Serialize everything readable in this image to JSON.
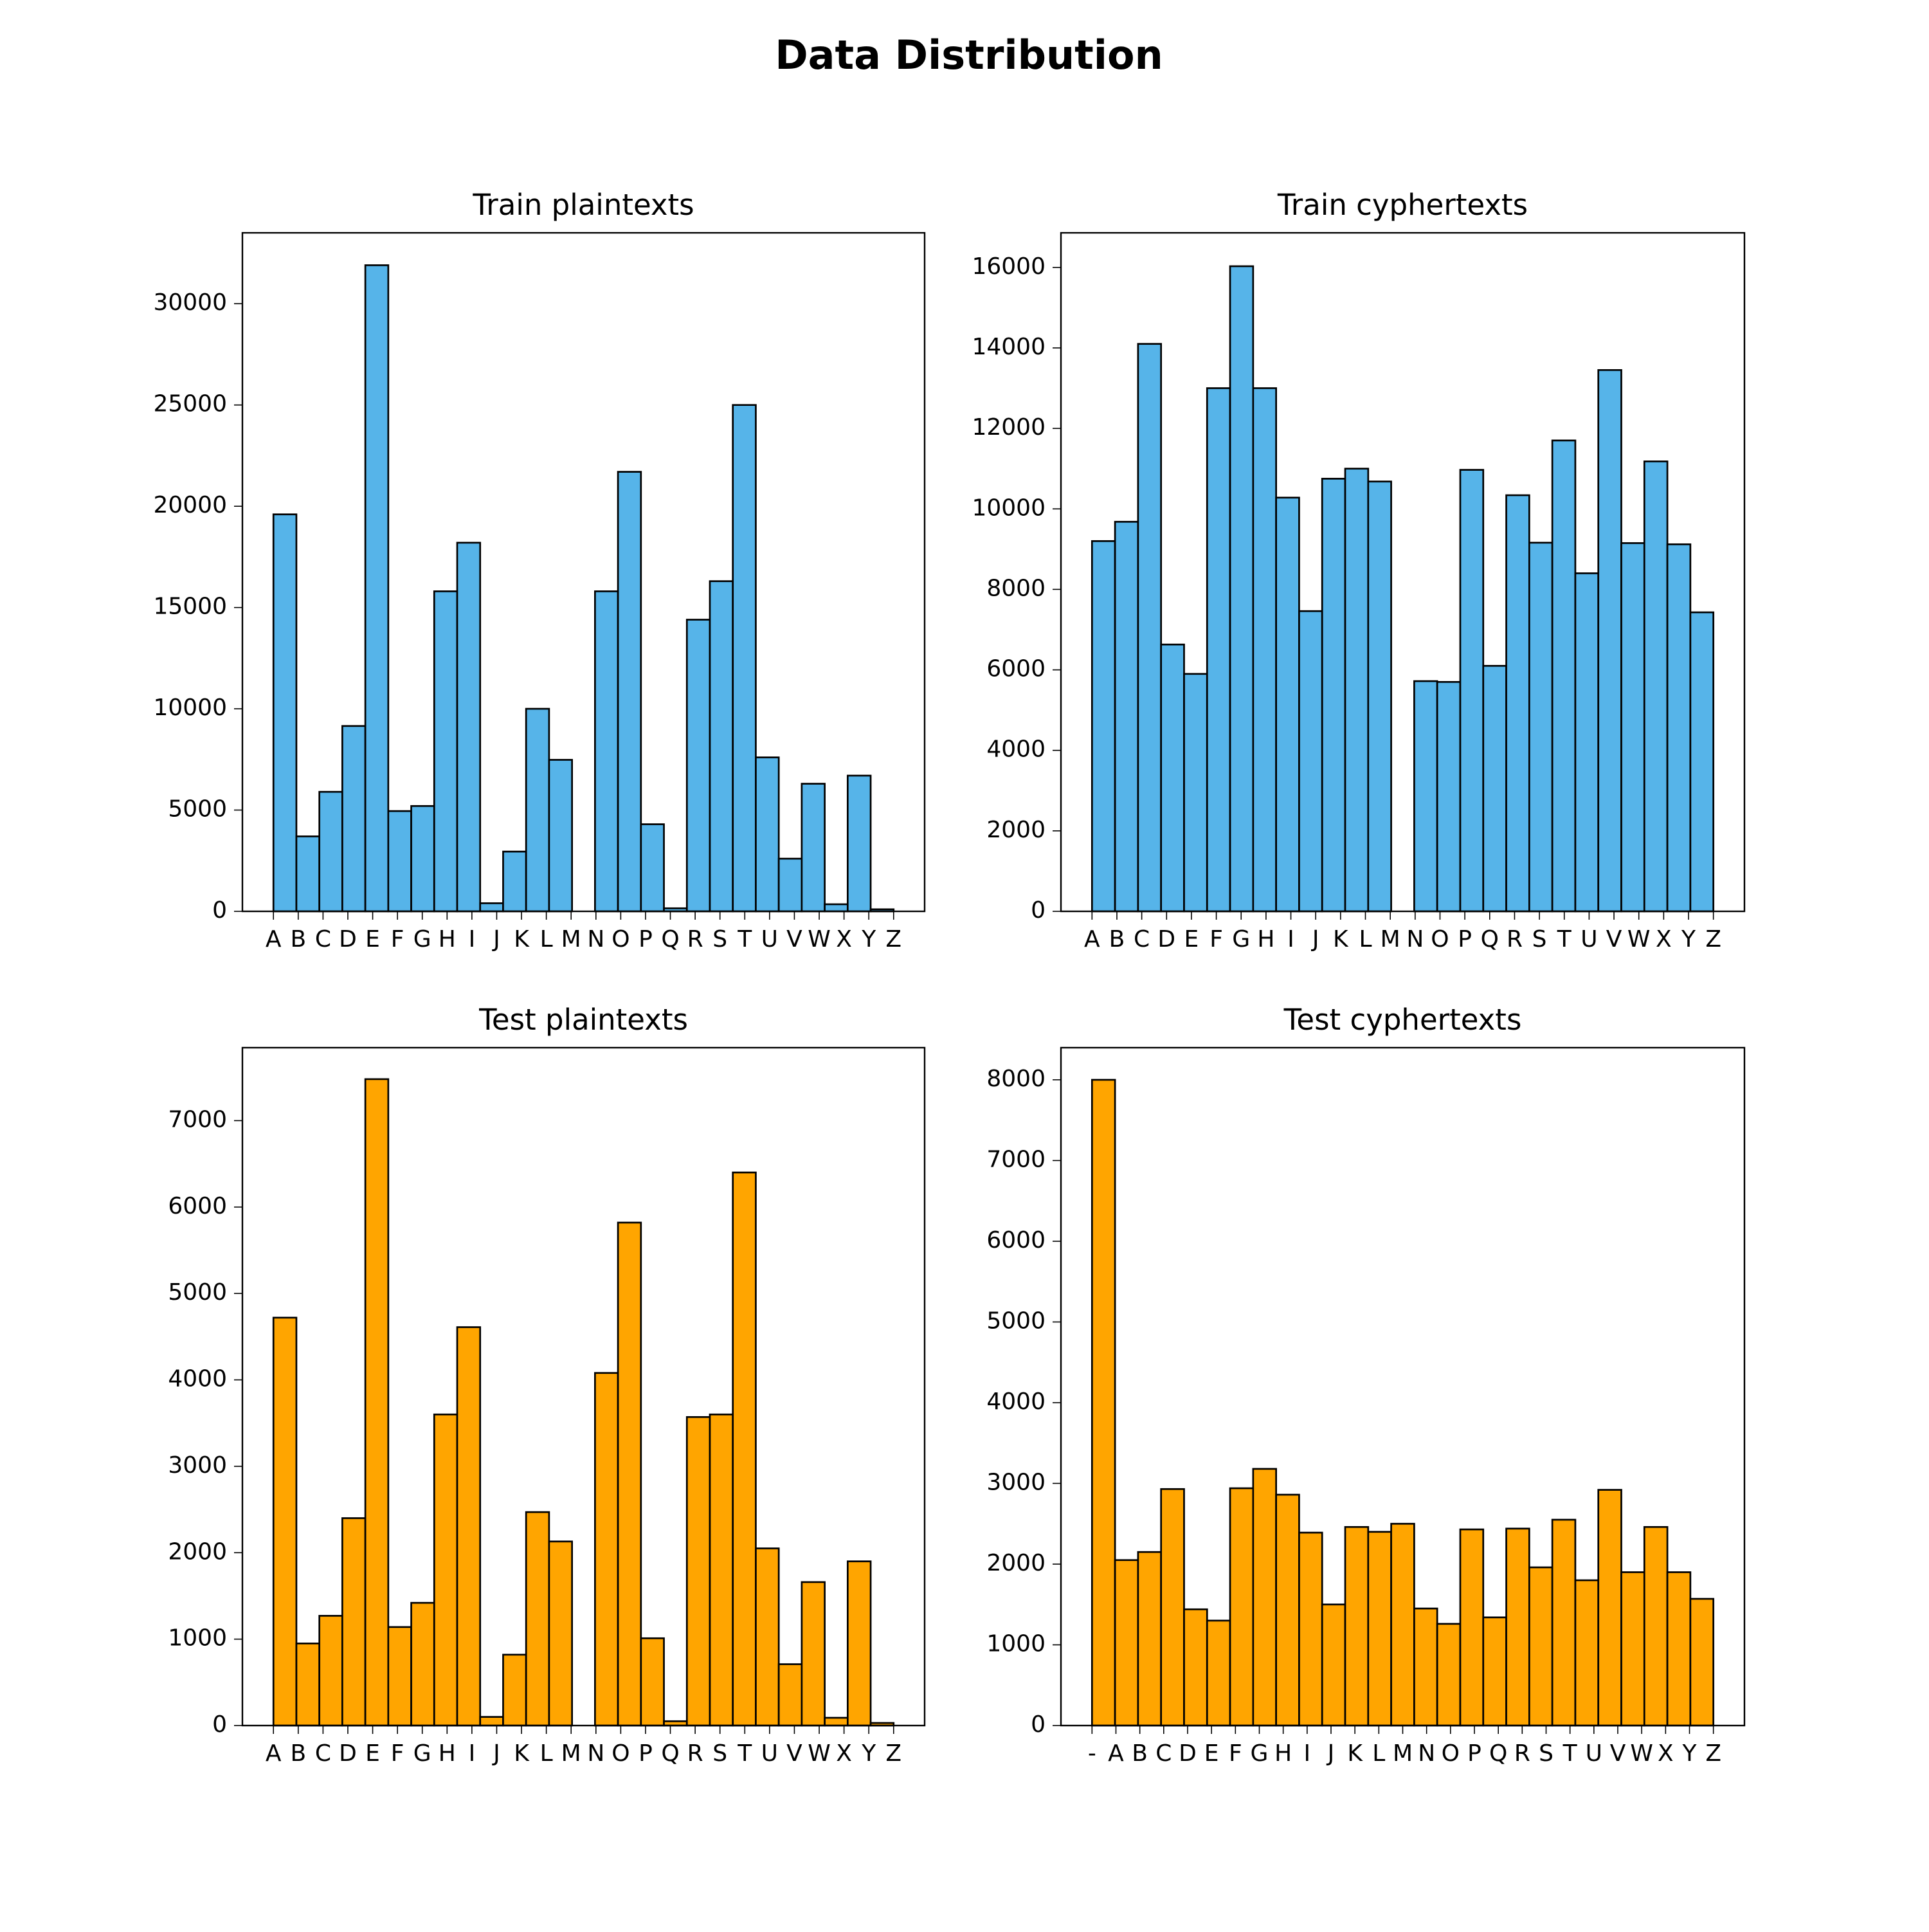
{
  "title": "Data Distribution",
  "chart_data": [
    {
      "type": "bar",
      "title": "Train plaintexts",
      "color": "#56b4e9",
      "categories": [
        "A",
        "B",
        "C",
        "D",
        "E",
        "F",
        "G",
        "H",
        "I",
        "J",
        "K",
        "L",
        "M",
        "N",
        "O",
        "P",
        "Q",
        "R",
        "S",
        "T",
        "U",
        "V",
        "W",
        "X",
        "Y",
        "Z"
      ],
      "values": [
        19600,
        3700,
        5900,
        9150,
        31900,
        4950,
        5200,
        15800,
        18200,
        400,
        2950,
        10000,
        7480,
        15800,
        21700,
        4300,
        150,
        14400,
        16300,
        25000,
        7600,
        2600,
        6300,
        350,
        6700,
        100
      ],
      "ylim": [
        0,
        33500
      ],
      "yticks": [
        0,
        5000,
        10000,
        15000,
        20000,
        25000,
        30000
      ]
    },
    {
      "type": "bar",
      "title": "Train cyphertexts",
      "color": "#56b4e9",
      "categories": [
        "A",
        "B",
        "C",
        "D",
        "E",
        "F",
        "G",
        "H",
        "I",
        "J",
        "K",
        "L",
        "M",
        "N",
        "O",
        "P",
        "Q",
        "R",
        "S",
        "T",
        "U",
        "V",
        "W",
        "X",
        "Y",
        "Z"
      ],
      "values": [
        9200,
        9680,
        14100,
        6630,
        5900,
        13000,
        16030,
        13000,
        10280,
        7460,
        10750,
        11000,
        10680,
        5720,
        5700,
        10970,
        6100,
        10340,
        9160,
        11700,
        8400,
        13450,
        9150,
        11180,
        9120,
        7430
      ],
      "ylim": [
        0,
        16860
      ],
      "yticks": [
        0,
        2000,
        4000,
        6000,
        8000,
        10000,
        12000,
        14000,
        16000
      ]
    },
    {
      "type": "bar",
      "title": "Test plaintexts",
      "color": "#ffa500",
      "categories": [
        "A",
        "B",
        "C",
        "D",
        "E",
        "F",
        "G",
        "H",
        "I",
        "J",
        "K",
        "L",
        "M",
        "N",
        "O",
        "P",
        "Q",
        "R",
        "S",
        "T",
        "U",
        "V",
        "W",
        "X",
        "Y",
        "Z"
      ],
      "values": [
        4720,
        950,
        1270,
        2400,
        7480,
        1140,
        1420,
        3600,
        4610,
        100,
        820,
        2470,
        2130,
        4080,
        5820,
        1010,
        50,
        3570,
        3600,
        6400,
        2050,
        710,
        1660,
        90,
        1900,
        30
      ],
      "ylim": [
        0,
        7844
      ],
      "yticks": [
        0,
        1000,
        2000,
        3000,
        4000,
        5000,
        6000,
        7000
      ]
    },
    {
      "type": "bar",
      "title": "Test cyphertexts",
      "color": "#ffa500",
      "categories": [
        "-",
        "A",
        "B",
        "C",
        "D",
        "E",
        "F",
        "G",
        "H",
        "I",
        "J",
        "K",
        "L",
        "M",
        "N",
        "O",
        "P",
        "Q",
        "R",
        "S",
        "T",
        "U",
        "V",
        "W",
        "X",
        "Y",
        "Z"
      ],
      "values": [
        8000,
        2050,
        2150,
        2930,
        1440,
        1300,
        2940,
        3180,
        2860,
        2390,
        1500,
        2460,
        2400,
        2500,
        1450,
        1260,
        2430,
        1340,
        2440,
        1960,
        2550,
        1800,
        2920,
        1900,
        2460,
        1900,
        1570
      ],
      "ylim": [
        0,
        8398
      ],
      "yticks": [
        0,
        1000,
        2000,
        3000,
        4000,
        5000,
        6000,
        7000,
        8000
      ]
    }
  ]
}
